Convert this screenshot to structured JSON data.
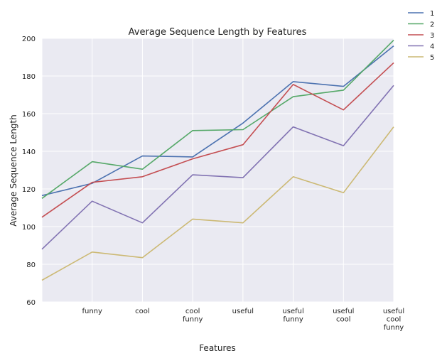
{
  "chart_data": {
    "type": "line",
    "title": "Average Sequence Length by Features",
    "xlabel": "Features",
    "ylabel": "Average Sequence Length",
    "ylim": [
      60,
      200
    ],
    "yticks": [
      60,
      80,
      100,
      120,
      140,
      160,
      180,
      200
    ],
    "grid": true,
    "legend_position": "top-right outside",
    "categories": [
      [
        ""
      ],
      [
        "funny"
      ],
      [
        "cool"
      ],
      [
        "cool",
        "funny"
      ],
      [
        "useful"
      ],
      [
        "useful",
        "funny"
      ],
      [
        "useful",
        "cool"
      ],
      [
        "useful",
        "cool",
        "funny"
      ]
    ],
    "series": [
      {
        "name": "1",
        "color": "#4c72b0",
        "values": [
          116.5,
          123,
          137.5,
          137,
          155,
          177,
          174.5,
          196
        ]
      },
      {
        "name": "2",
        "color": "#55a868",
        "values": [
          115,
          134.5,
          130.5,
          151,
          151.5,
          169,
          172.5,
          199
        ]
      },
      {
        "name": "3",
        "color": "#c44e52",
        "values": [
          105,
          123.5,
          126.5,
          136,
          143.5,
          175.5,
          162,
          187
        ]
      },
      {
        "name": "4",
        "color": "#8172b2",
        "values": [
          88,
          113.5,
          102,
          127.5,
          126,
          153,
          143,
          175
        ]
      },
      {
        "name": "5",
        "color": "#ccb974",
        "values": [
          71.5,
          86.5,
          83.5,
          104,
          102,
          126.5,
          118,
          153
        ]
      }
    ]
  }
}
